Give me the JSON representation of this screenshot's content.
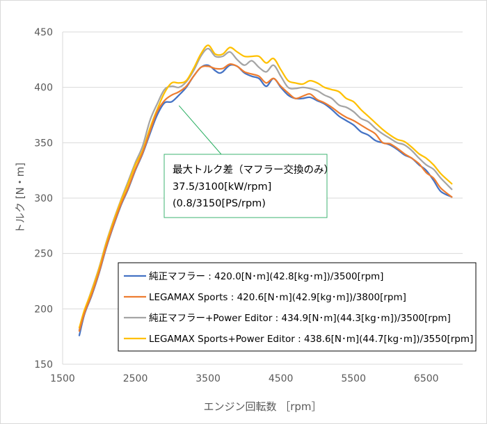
{
  "chart_data": {
    "type": "line",
    "xlabel": "エンジン回転数 ［rpm］",
    "ylabel": "トルク [N・m]",
    "xlim": [
      1500,
      7000
    ],
    "ylim": [
      150,
      450
    ],
    "xticks": [
      1500,
      2500,
      3500,
      4500,
      5500,
      6500
    ],
    "yticks": [
      150,
      200,
      250,
      300,
      350,
      400,
      450
    ],
    "grid": "horizontal",
    "legend_position": "lower-right",
    "annotation": {
      "lines": [
        "最大トルク差（マフラー交換のみ）",
        "37.5/3100[kW/rpm]",
        "(0.8/3150[PS/rpm)"
      ],
      "points_to": {
        "x": 3100,
        "y": 386
      }
    },
    "series": [
      {
        "name": "純正マフラー : 420.0[N･m](42.8[kg･m])/3500[rpm]",
        "color": "#4472C4",
        "points": [
          [
            1730,
            176
          ],
          [
            1800,
            195
          ],
          [
            1900,
            212
          ],
          [
            2000,
            232
          ],
          [
            2100,
            255
          ],
          [
            2200,
            275
          ],
          [
            2300,
            293
          ],
          [
            2400,
            308
          ],
          [
            2500,
            325
          ],
          [
            2600,
            340
          ],
          [
            2700,
            358
          ],
          [
            2800,
            375
          ],
          [
            2900,
            386
          ],
          [
            3000,
            387
          ],
          [
            3100,
            393
          ],
          [
            3200,
            400
          ],
          [
            3300,
            410
          ],
          [
            3400,
            418
          ],
          [
            3500,
            420
          ],
          [
            3600,
            415
          ],
          [
            3650,
            413
          ],
          [
            3700,
            414
          ],
          [
            3800,
            420
          ],
          [
            3900,
            419
          ],
          [
            4000,
            413
          ],
          [
            4100,
            410
          ],
          [
            4200,
            408
          ],
          [
            4300,
            401
          ],
          [
            4400,
            408
          ],
          [
            4500,
            400
          ],
          [
            4600,
            393
          ],
          [
            4700,
            390
          ],
          [
            4800,
            390
          ],
          [
            4900,
            391
          ],
          [
            5000,
            388
          ],
          [
            5100,
            385
          ],
          [
            5200,
            380
          ],
          [
            5300,
            374
          ],
          [
            5400,
            370
          ],
          [
            5500,
            366
          ],
          [
            5600,
            360
          ],
          [
            5700,
            357
          ],
          [
            5800,
            352
          ],
          [
            5900,
            350
          ],
          [
            6000,
            348
          ],
          [
            6100,
            344
          ],
          [
            6200,
            339
          ],
          [
            6300,
            336
          ],
          [
            6400,
            330
          ],
          [
            6500,
            325
          ],
          [
            6600,
            316
          ],
          [
            6700,
            306
          ],
          [
            6850,
            301
          ]
        ]
      },
      {
        "name": "LEGAMAX Sports : 420.6[N･m](42.9[kg･m])/3800[rpm]",
        "color": "#ED7D31",
        "points": [
          [
            1730,
            180
          ],
          [
            1800,
            196
          ],
          [
            1900,
            213
          ],
          [
            2000,
            233
          ],
          [
            2100,
            256
          ],
          [
            2200,
            276
          ],
          [
            2300,
            294
          ],
          [
            2400,
            309
          ],
          [
            2500,
            326
          ],
          [
            2600,
            341
          ],
          [
            2700,
            360
          ],
          [
            2800,
            378
          ],
          [
            2900,
            388
          ],
          [
            3000,
            393
          ],
          [
            3100,
            396
          ],
          [
            3200,
            401
          ],
          [
            3300,
            410
          ],
          [
            3400,
            418
          ],
          [
            3500,
            419
          ],
          [
            3600,
            417
          ],
          [
            3700,
            417
          ],
          [
            3800,
            421
          ],
          [
            3900,
            419
          ],
          [
            4000,
            414
          ],
          [
            4100,
            412
          ],
          [
            4200,
            410
          ],
          [
            4300,
            404
          ],
          [
            4400,
            408
          ],
          [
            4500,
            401
          ],
          [
            4600,
            395
          ],
          [
            4700,
            390
          ],
          [
            4800,
            392
          ],
          [
            4900,
            394
          ],
          [
            5000,
            389
          ],
          [
            5100,
            386
          ],
          [
            5200,
            382
          ],
          [
            5300,
            377
          ],
          [
            5400,
            373
          ],
          [
            5500,
            370
          ],
          [
            5600,
            366
          ],
          [
            5700,
            362
          ],
          [
            5800,
            358
          ],
          [
            5900,
            350
          ],
          [
            6000,
            349
          ],
          [
            6100,
            345
          ],
          [
            6200,
            340
          ],
          [
            6300,
            336
          ],
          [
            6400,
            331
          ],
          [
            6500,
            323
          ],
          [
            6600,
            318
          ],
          [
            6700,
            309
          ],
          [
            6850,
            301
          ]
        ]
      },
      {
        "name": "純正マフラー+Power Editor : 434.9[N･m](44.3[kg･m])/3500[rpm]",
        "color": "#A5A5A5",
        "points": [
          [
            1730,
            181
          ],
          [
            1800,
            198
          ],
          [
            1900,
            217
          ],
          [
            2000,
            237
          ],
          [
            2100,
            260
          ],
          [
            2200,
            280
          ],
          [
            2300,
            298
          ],
          [
            2400,
            315
          ],
          [
            2500,
            332
          ],
          [
            2600,
            347
          ],
          [
            2700,
            370
          ],
          [
            2800,
            385
          ],
          [
            2900,
            398
          ],
          [
            3000,
            401
          ],
          [
            3100,
            400
          ],
          [
            3200,
            405
          ],
          [
            3300,
            415
          ],
          [
            3400,
            428
          ],
          [
            3500,
            435
          ],
          [
            3600,
            428
          ],
          [
            3700,
            428
          ],
          [
            3800,
            432
          ],
          [
            3900,
            425
          ],
          [
            4000,
            420
          ],
          [
            4100,
            424
          ],
          [
            4200,
            418
          ],
          [
            4300,
            414
          ],
          [
            4400,
            420
          ],
          [
            4500,
            410
          ],
          [
            4600,
            400
          ],
          [
            4700,
            399
          ],
          [
            4800,
            400
          ],
          [
            4900,
            399
          ],
          [
            5000,
            397
          ],
          [
            5100,
            393
          ],
          [
            5200,
            390
          ],
          [
            5300,
            384
          ],
          [
            5400,
            382
          ],
          [
            5500,
            378
          ],
          [
            5600,
            372
          ],
          [
            5700,
            369
          ],
          [
            5800,
            363
          ],
          [
            5900,
            358
          ],
          [
            6000,
            354
          ],
          [
            6100,
            350
          ],
          [
            6200,
            348
          ],
          [
            6300,
            343
          ],
          [
            6400,
            336
          ],
          [
            6500,
            330
          ],
          [
            6600,
            326
          ],
          [
            6700,
            318
          ],
          [
            6850,
            308
          ]
        ]
      },
      {
        "name": "LEGAMAX Sports+Power Editor : 438.6[N･m](44.7[kg･m])/3550[rpm]",
        "color": "#FFC000",
        "points": [
          [
            1730,
            183
          ],
          [
            1800,
            199
          ],
          [
            1900,
            216
          ],
          [
            2000,
            236
          ],
          [
            2100,
            259
          ],
          [
            2200,
            279
          ],
          [
            2300,
            297
          ],
          [
            2400,
            313
          ],
          [
            2500,
            330
          ],
          [
            2600,
            343
          ],
          [
            2700,
            363
          ],
          [
            2800,
            380
          ],
          [
            2900,
            395
          ],
          [
            3000,
            404
          ],
          [
            3100,
            404
          ],
          [
            3200,
            406
          ],
          [
            3300,
            417
          ],
          [
            3400,
            430
          ],
          [
            3500,
            438
          ],
          [
            3600,
            430
          ],
          [
            3700,
            430
          ],
          [
            3800,
            436
          ],
          [
            3900,
            432
          ],
          [
            4000,
            428
          ],
          [
            4100,
            428
          ],
          [
            4200,
            428
          ],
          [
            4300,
            422
          ],
          [
            4400,
            426
          ],
          [
            4500,
            416
          ],
          [
            4600,
            406
          ],
          [
            4700,
            404
          ],
          [
            4800,
            403
          ],
          [
            4900,
            406
          ],
          [
            5000,
            404
          ],
          [
            5100,
            400
          ],
          [
            5200,
            398
          ],
          [
            5300,
            396
          ],
          [
            5400,
            390
          ],
          [
            5500,
            387
          ],
          [
            5600,
            380
          ],
          [
            5700,
            374
          ],
          [
            5800,
            368
          ],
          [
            5900,
            362
          ],
          [
            6000,
            357
          ],
          [
            6100,
            353
          ],
          [
            6200,
            351
          ],
          [
            6300,
            346
          ],
          [
            6400,
            340
          ],
          [
            6500,
            336
          ],
          [
            6600,
            330
          ],
          [
            6700,
            322
          ],
          [
            6850,
            313
          ]
        ]
      }
    ]
  }
}
